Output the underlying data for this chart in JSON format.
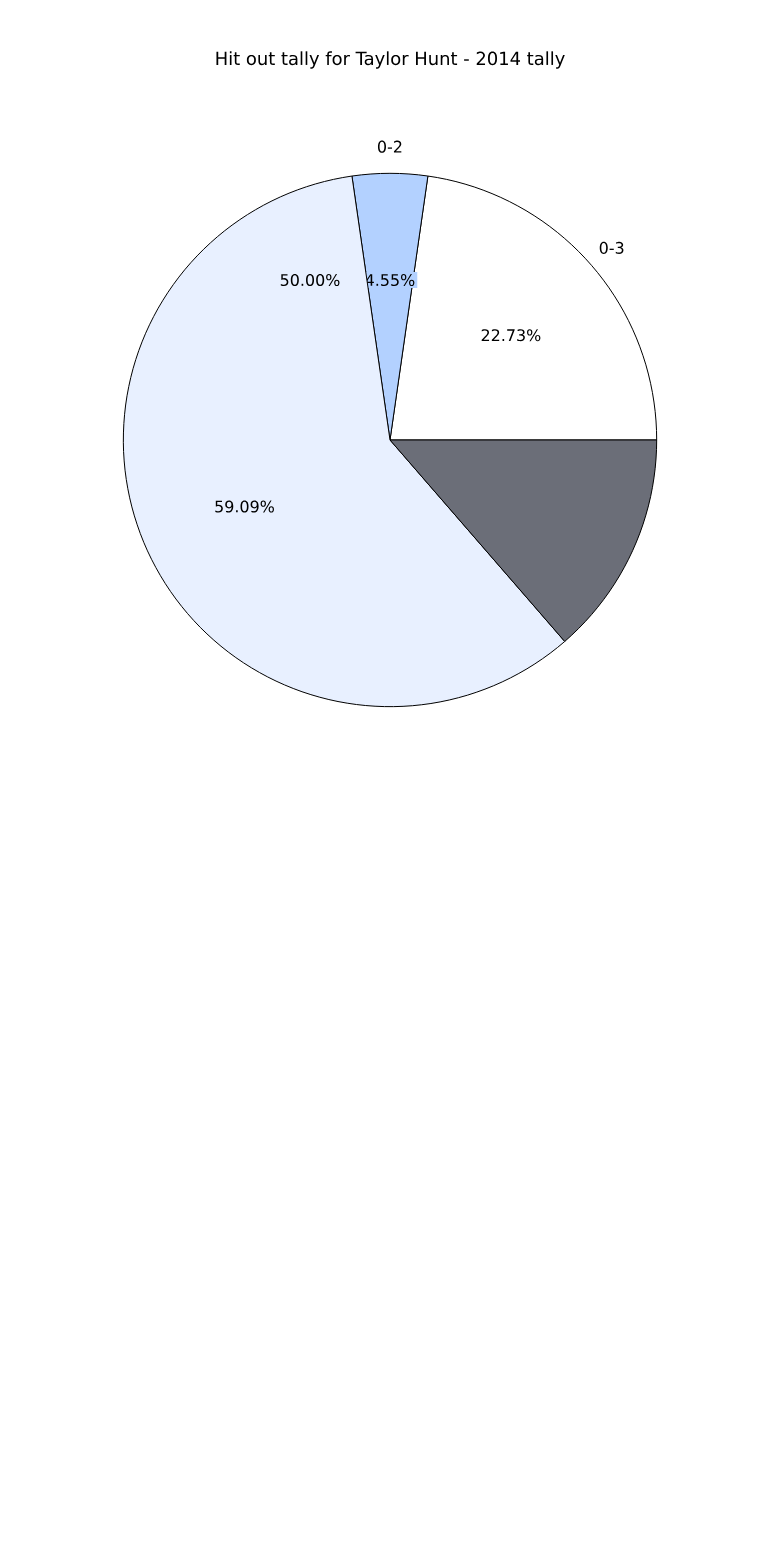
{
  "chart_data": {
    "type": "pie",
    "title": "Hit out tally for Taylor Hunt - 2014 tally",
    "categories": [
      "0-3",
      "0-2",
      null,
      null
    ],
    "values": [
      22.73,
      4.55,
      59.09,
      13.63
    ],
    "colors": [
      "#ffffff",
      "#b3d1ff",
      "#e8f0ff",
      "#6b6e78"
    ],
    "value_labels": [
      "22.73%",
      "4.55%",
      "59.09%",
      null
    ],
    "annotations": [
      "50.00%"
    ]
  }
}
